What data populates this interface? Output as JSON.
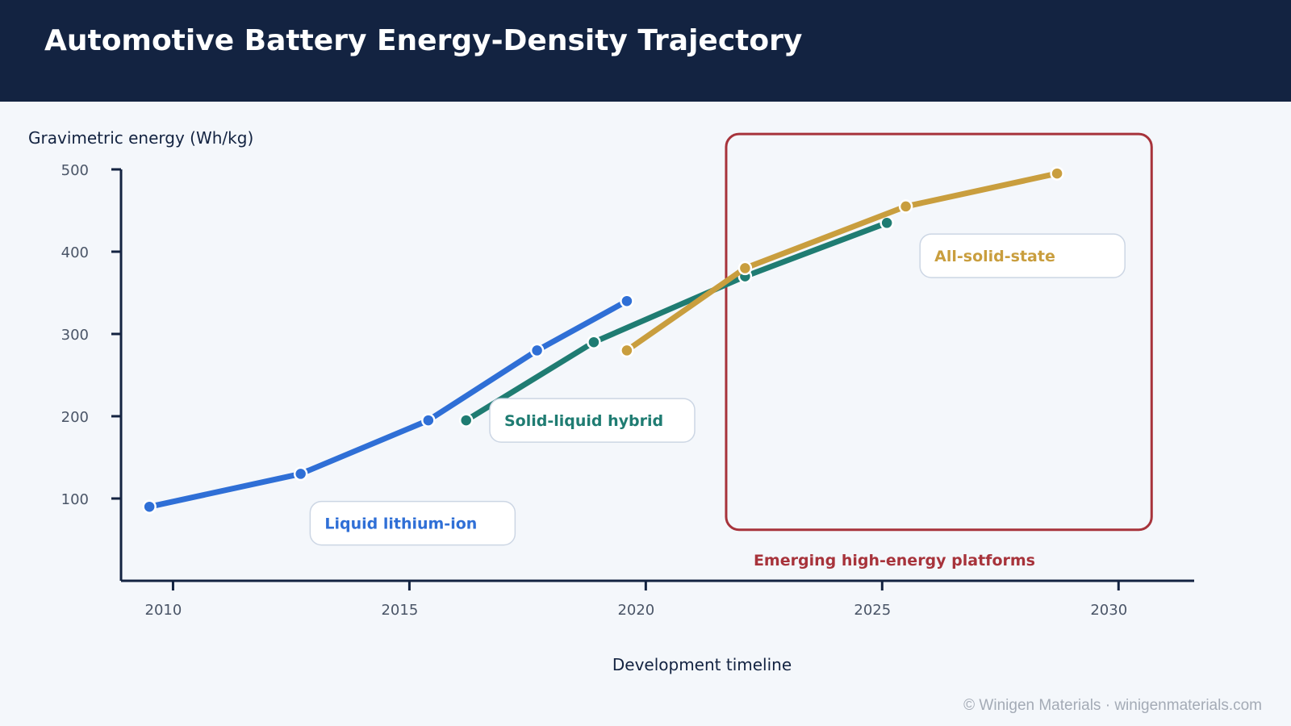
{
  "page": {
    "title": "Automotive Battery Energy-Density Trajectory",
    "watermark": "© Winigen Materials · winigenmaterials.com"
  },
  "chart_data": {
    "type": "line",
    "title": "Automotive Battery Energy-Density Trajectory",
    "xlabel": "Development timeline",
    "ylabel": "Gravimetric energy (Wh/kg)",
    "xlim": [
      2008.9,
      2031.6
    ],
    "ylim": [
      0,
      500
    ],
    "x_ticks": [
      2010,
      2015,
      2020,
      2025,
      2030
    ],
    "y_ticks": [
      100,
      200,
      300,
      400,
      500
    ],
    "grid": false,
    "series": [
      {
        "name": "Liquid lithium-ion",
        "color": "#2f6fd6",
        "points": [
          [
            2009.5,
            90
          ],
          [
            2012.7,
            130
          ],
          [
            2015.4,
            195
          ],
          [
            2017.7,
            280
          ],
          [
            2019.6,
            340
          ]
        ],
        "label_position": [
          2012.9,
          70
        ]
      },
      {
        "name": "Solid-liquid hybrid",
        "color": "#1f7c72",
        "points": [
          [
            2016.2,
            195
          ],
          [
            2018.9,
            290
          ],
          [
            2022.1,
            370
          ],
          [
            2025.1,
            435
          ]
        ],
        "label_position": [
          2016.7,
          195
        ]
      },
      {
        "name": "All-solid-state",
        "color": "#c99e3e",
        "points": [
          [
            2019.6,
            280
          ],
          [
            2022.1,
            380
          ],
          [
            2025.5,
            455
          ],
          [
            2028.7,
            495
          ]
        ],
        "label_position": [
          2025.8,
          395
        ]
      }
    ],
    "annotations": [
      {
        "text": "Emerging high-energy platforms",
        "color": "#a7333b",
        "x_range": [
          2021.7,
          2030.7
        ],
        "y_range": [
          62,
          543
        ]
      }
    ]
  }
}
